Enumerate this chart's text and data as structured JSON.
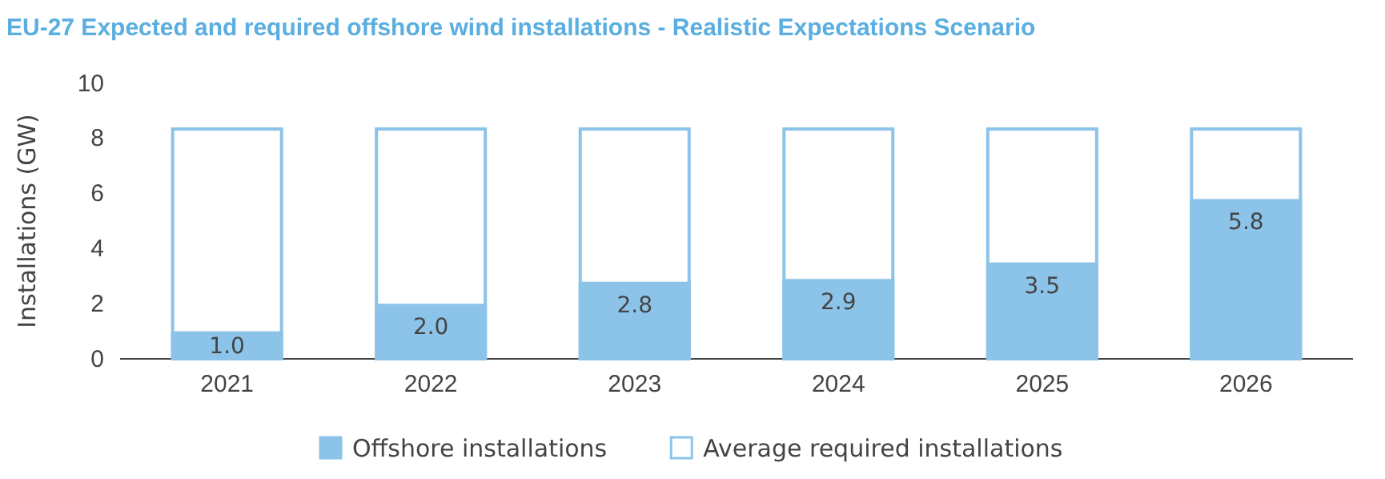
{
  "chart_data": {
    "type": "bar",
    "title": "EU-27 Expected and required offshore wind installations - Realistic Expectations Scenario",
    "ylabel": "Installations (GW)",
    "categories": [
      "2021",
      "2022",
      "2023",
      "2024",
      "2025",
      "2026"
    ],
    "series": [
      {
        "name": "Offshore installations",
        "color": "#8cc3e8",
        "values": [
          1.0,
          2.0,
          2.8,
          2.9,
          3.5,
          5.8
        ],
        "value_labels": [
          "1.0",
          "2.0",
          "2.8",
          "2.9",
          "3.5",
          "5.8"
        ]
      },
      {
        "name": "Average required installations",
        "color": "#8cc3e8",
        "values": [
          8.4,
          8.4,
          8.4,
          8.4,
          8.4,
          8.4
        ]
      }
    ],
    "ylim": [
      0,
      10
    ],
    "yticks": [
      0,
      2,
      4,
      6,
      8,
      10
    ],
    "grid": false,
    "legend": "bottom"
  }
}
